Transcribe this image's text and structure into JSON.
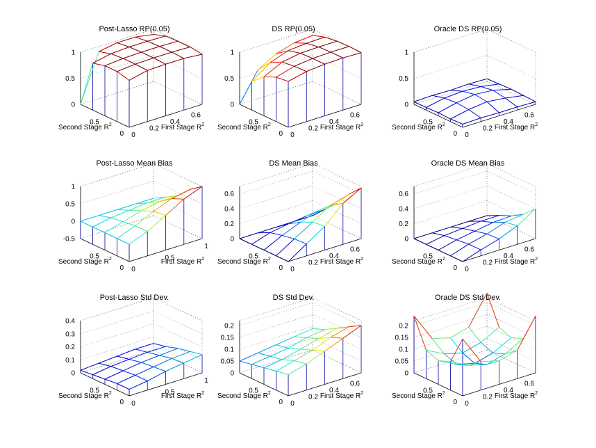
{
  "figure": {
    "rows": 3,
    "cols": 3
  },
  "chart_data": [
    {
      "id": "p11",
      "type": "surface",
      "title": "Post-Lasso RP(0.05)",
      "xlabel": "First Stage R",
      "ylabel": "Second Stage R",
      "label_sup": "2",
      "x": [
        0,
        0.15,
        0.3,
        0.45,
        0.6
      ],
      "y": [
        0.8,
        0.6,
        0.4,
        0.2,
        0
      ],
      "xticks": [
        "0",
        "0.2",
        "0.4",
        "0.6"
      ],
      "yticks": [
        "0.5",
        "0"
      ],
      "zticks": [
        "0",
        "0.5",
        "1"
      ],
      "zlim": [
        0,
        1
      ],
      "z": [
        [
          0,
          0.9,
          0.96,
          0.96,
          0.9
        ],
        [
          0.9,
          0.97,
          0.99,
          0.99,
          0.98
        ],
        [
          0.96,
          0.99,
          1,
          1,
          0.99
        ],
        [
          0.96,
          0.99,
          1,
          1,
          0.99
        ],
        [
          0.9,
          0.98,
          0.99,
          0.99,
          0.96
        ]
      ]
    },
    {
      "id": "p12",
      "type": "surface",
      "title": "DS RP(0.05)",
      "xlabel": "First Stage R",
      "ylabel": "Second Stage R",
      "label_sup": "2",
      "x": [
        0,
        0.15,
        0.3,
        0.45,
        0.6
      ],
      "y": [
        0.8,
        0.6,
        0.4,
        0.2,
        0
      ],
      "xticks": [
        "0",
        "0.2",
        "0.4",
        "0.6"
      ],
      "yticks": [
        "0.5",
        "0"
      ],
      "zticks": [
        "0",
        "0.5",
        "1"
      ],
      "zlim": [
        0,
        1
      ],
      "z": [
        [
          0,
          0.55,
          0.75,
          0.85,
          0.88
        ],
        [
          0.55,
          0.8,
          0.92,
          0.95,
          0.96
        ],
        [
          0.75,
          0.92,
          0.98,
          0.99,
          0.99
        ],
        [
          0.85,
          0.95,
          0.99,
          1,
          1
        ],
        [
          0.88,
          0.96,
          0.99,
          1,
          0.99
        ]
      ]
    },
    {
      "id": "p13",
      "type": "surface",
      "title": "Oracle DS RP(0.05)",
      "xlabel": "First Stage R",
      "ylabel": "Second Stage R",
      "label_sup": "2",
      "x": [
        0,
        0.15,
        0.3,
        0.45,
        0.6
      ],
      "y": [
        0.8,
        0.6,
        0.4,
        0.2,
        0
      ],
      "xticks": [
        "0",
        "0.2",
        "0.4",
        "0.6"
      ],
      "yticks": [
        "0.5",
        "0"
      ],
      "zticks": [
        "0",
        "0.5",
        "1"
      ],
      "zlim": [
        0,
        1
      ],
      "z": [
        [
          0.05,
          0.06,
          0.05,
          0.06,
          0.05
        ],
        [
          0.05,
          0.12,
          0.14,
          0.12,
          0.06
        ],
        [
          0.06,
          0.14,
          0.19,
          0.16,
          0.07
        ],
        [
          0.05,
          0.12,
          0.16,
          0.12,
          0.06
        ],
        [
          0.06,
          0.07,
          0.06,
          0.06,
          0.05
        ]
      ]
    },
    {
      "id": "p21",
      "type": "surface",
      "title": "Post-Lasso Mean Bias",
      "xlabel": "First Stage R",
      "ylabel": "Second Stage R",
      "label_sup": "2",
      "x": [
        0,
        0.2,
        0.4,
        0.6,
        0.8
      ],
      "y": [
        0.8,
        0.6,
        0.4,
        0.2,
        0
      ],
      "xticks": [
        "0",
        "0.5",
        "1"
      ],
      "yticks": [
        "0.5",
        "0"
      ],
      "zticks": [
        "-0.5",
        "0",
        "0.5",
        "1"
      ],
      "zlim": [
        -0.5,
        1
      ],
      "z": [
        [
          0,
          0,
          0,
          0,
          0
        ],
        [
          0,
          0.1,
          0.15,
          0.2,
          0.2
        ],
        [
          0,
          0.15,
          0.3,
          0.4,
          0.4
        ],
        [
          0,
          0.2,
          0.45,
          0.65,
          0.75
        ],
        [
          0,
          0.2,
          0.5,
          0.8,
          1.0
        ]
      ]
    },
    {
      "id": "p22",
      "type": "surface",
      "title": "DS Mean Bias",
      "xlabel": "First Stage R",
      "ylabel": "Second Stage R",
      "label_sup": "2",
      "x": [
        0,
        0.15,
        0.3,
        0.45,
        0.6
      ],
      "y": [
        0.8,
        0.6,
        0.4,
        0.2,
        0
      ],
      "xticks": [
        "0",
        "0.2",
        "0.4",
        "0.6"
      ],
      "yticks": [
        "0.5",
        "0"
      ],
      "zticks": [
        "0",
        "0.2",
        "0.4",
        "0.6"
      ],
      "zlim": [
        0,
        0.7
      ],
      "z": [
        [
          0,
          0,
          0,
          0,
          0
        ],
        [
          0,
          0.08,
          0.12,
          0.15,
          0.16
        ],
        [
          0,
          0.12,
          0.22,
          0.3,
          0.32
        ],
        [
          0,
          0.15,
          0.3,
          0.45,
          0.52
        ],
        [
          0,
          0.16,
          0.32,
          0.55,
          0.68
        ]
      ]
    },
    {
      "id": "p23",
      "type": "surface",
      "title": "Oracle DS Mean Bias",
      "xlabel": "First Stage R",
      "ylabel": "Second Stage R",
      "label_sup": "2",
      "x": [
        0,
        0.15,
        0.3,
        0.45,
        0.6
      ],
      "y": [
        0.8,
        0.6,
        0.4,
        0.2,
        0
      ],
      "xticks": [
        "0",
        "0.2",
        "0.4",
        "0.6"
      ],
      "yticks": [
        "0.5",
        "0"
      ],
      "zticks": [
        "0",
        "0.2",
        "0.4",
        "0.6"
      ],
      "zlim": [
        0,
        0.7
      ],
      "z": [
        [
          0,
          0,
          0,
          0,
          0
        ],
        [
          0,
          0.04,
          0.06,
          0.08,
          0.08
        ],
        [
          0,
          0.06,
          0.1,
          0.14,
          0.15
        ],
        [
          0,
          0.08,
          0.14,
          0.22,
          0.25
        ],
        [
          0,
          0.08,
          0.15,
          0.25,
          0.4
        ]
      ]
    },
    {
      "id": "p31",
      "type": "surface",
      "title": "Post-Lasso Std Dev.",
      "xlabel": "First Stage R",
      "ylabel": "Second Stage R",
      "label_sup": "2",
      "x": [
        0,
        0.2,
        0.4,
        0.6,
        0.8
      ],
      "y": [
        0.8,
        0.6,
        0.4,
        0.2,
        0
      ],
      "xticks": [
        "0",
        "0.5",
        "1"
      ],
      "yticks": [
        "0.5",
        "0"
      ],
      "zticks": [
        "0",
        "0.1",
        "0.2",
        "0.3",
        "0.4"
      ],
      "zlim": [
        0,
        0.4
      ],
      "z": [
        [
          0.02,
          0.03,
          0.04,
          0.05,
          0.05
        ],
        [
          0.03,
          0.05,
          0.06,
          0.07,
          0.07
        ],
        [
          0.04,
          0.06,
          0.08,
          0.09,
          0.1
        ],
        [
          0.05,
          0.07,
          0.09,
          0.11,
          0.12
        ],
        [
          0.05,
          0.07,
          0.1,
          0.12,
          0.14
        ]
      ]
    },
    {
      "id": "p32",
      "type": "surface",
      "title": "DS Std Dev.",
      "xlabel": "First Stage R",
      "ylabel": "Second Stage R",
      "label_sup": "2",
      "x": [
        0,
        0.15,
        0.3,
        0.45,
        0.6
      ],
      "y": [
        0.8,
        0.6,
        0.4,
        0.2,
        0
      ],
      "xticks": [
        "0",
        "0.2",
        "0.4",
        "0.6"
      ],
      "yticks": [
        "0.5",
        "0"
      ],
      "zticks": [
        "0",
        "0.05",
        "0.1",
        "0.15",
        "0.2"
      ],
      "zlim": [
        0,
        0.22
      ],
      "z": [
        [
          0.05,
          0.06,
          0.07,
          0.08,
          0.09
        ],
        [
          0.06,
          0.07,
          0.08,
          0.1,
          0.11
        ],
        [
          0.07,
          0.08,
          0.1,
          0.12,
          0.14
        ],
        [
          0.08,
          0.1,
          0.12,
          0.15,
          0.17
        ],
        [
          0.09,
          0.11,
          0.14,
          0.17,
          0.2
        ]
      ]
    },
    {
      "id": "p33",
      "type": "surface",
      "title": "Oracle DS Std Dev.",
      "xlabel": "First Stage R",
      "ylabel": "Second Stage R",
      "label_sup": "2",
      "x": [
        0,
        0.15,
        0.3,
        0.45,
        0.6
      ],
      "y": [
        0.8,
        0.6,
        0.4,
        0.2,
        0
      ],
      "xticks": [
        "0",
        "0.2",
        "0.4",
        "0.6"
      ],
      "yticks": [
        "0.5",
        "0"
      ],
      "zticks": [
        "0",
        "0.05",
        "0.1",
        "0.15",
        "0.2"
      ],
      "zlim": [
        0,
        0.22
      ],
      "z": [
        [
          0.24,
          0.12,
          0.1,
          0.12,
          0.24
        ],
        [
          0.12,
          0.08,
          0.06,
          0.08,
          0.12
        ],
        [
          0.1,
          0.06,
          0.04,
          0.06,
          0.1
        ],
        [
          0.12,
          0.08,
          0.06,
          0.08,
          0.12
        ],
        [
          0.24,
          0.12,
          0.1,
          0.12,
          0.24
        ]
      ]
    }
  ]
}
